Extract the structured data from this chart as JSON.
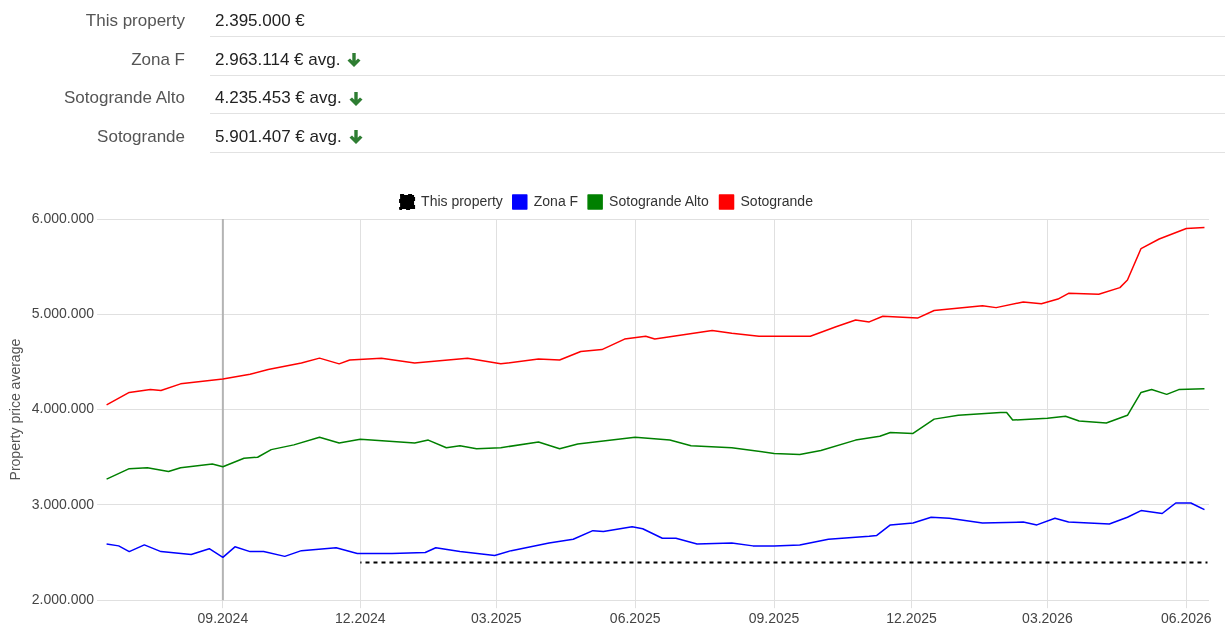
{
  "chart_data": {
    "type": "line",
    "annotations": [
      "This property",
      "2.395.000 €",
      "Zona F",
      "2.963.114 € avg.",
      "Sotogrande Alto",
      "4.235.453 € avg.",
      "Sotogrande",
      "5.901.407 € avg."
    ],
    "ylabel": "Property price average",
    "xlim": [
      "2024-06-15",
      "2026-06-16"
    ],
    "xticks": [
      {
        "value": "2024-09-01",
        "label": "09.2024"
      },
      {
        "value": "2024-12-01",
        "label": "12.2024"
      },
      {
        "value": "2025-03-01",
        "label": "03.2025"
      },
      {
        "value": "2025-06-01",
        "label": "06.2025"
      },
      {
        "value": "2025-09-01",
        "label": "09.2025"
      },
      {
        "value": "2025-12-01",
        "label": "12.2025"
      },
      {
        "value": "2026-03-01",
        "label": "03.2026"
      },
      {
        "value": "2026-06-01",
        "label": "06.2026"
      }
    ],
    "ylim": [
      2000000,
      6000000
    ],
    "yticks": [
      {
        "value": 2000000,
        "label": "2.000.000"
      },
      {
        "value": 3000000,
        "label": "3.000.000"
      },
      {
        "value": 4000000,
        "label": "4.000.000"
      },
      {
        "value": 5000000,
        "label": "5.000.000"
      },
      {
        "value": 6000000,
        "label": "6.000.000"
      }
    ],
    "grid": true,
    "legend": "top",
    "marker": "none",
    "ref_lines": [
      {
        "axis": "x",
        "value": "2024-09-01",
        "color": "#b4b4b4"
      }
    ],
    "series": [
      {
        "name": "This property",
        "color": "#000000",
        "line_style": "dashed",
        "x": [
          "2024-12-01",
          "2026-06-15"
        ],
        "values": [
          2395000,
          2395000
        ]
      },
      {
        "name": "Zona F",
        "color": "#0000ff",
        "x": [
          "2024-06-16",
          "2024-06-24",
          "2024-07-01",
          "2024-07-11",
          "2024-07-22",
          "2024-08-11",
          "2024-08-23",
          "2024-09-01",
          "2024-09-09",
          "2024-09-19",
          "2024-09-28",
          "2024-10-12",
          "2024-10-23",
          "2024-11-15",
          "2024-11-29",
          "2024-12-22",
          "2025-01-13",
          "2025-01-20",
          "2025-02-05",
          "2025-02-28",
          "2025-03-11",
          "2025-04-05",
          "2025-04-21",
          "2025-05-04",
          "2025-05-11",
          "2025-05-30",
          "2025-06-06",
          "2025-06-19",
          "2025-06-28",
          "2025-07-12",
          "2025-08-04",
          "2025-08-18",
          "2025-09-01",
          "2025-09-18",
          "2025-10-07",
          "2025-11-03",
          "2025-11-08",
          "2025-11-17",
          "2025-12-02",
          "2025-12-14",
          "2025-12-26",
          "2026-01-17",
          "2026-02-13",
          "2026-02-22",
          "2026-03-06",
          "2026-03-15",
          "2026-04-11",
          "2026-04-23",
          "2026-05-02",
          "2026-05-16",
          "2026-05-25",
          "2026-06-04",
          "2026-06-13"
        ],
        "values": [
          2590000,
          2570000,
          2510000,
          2580000,
          2510000,
          2480000,
          2540000,
          2450000,
          2560000,
          2510000,
          2510000,
          2460000,
          2520000,
          2550000,
          2490000,
          2490000,
          2500000,
          2550000,
          2510000,
          2470000,
          2520000,
          2600000,
          2640000,
          2730000,
          2720000,
          2770000,
          2750000,
          2650000,
          2650000,
          2590000,
          2600000,
          2570000,
          2570000,
          2580000,
          2640000,
          2670000,
          2680000,
          2790000,
          2810000,
          2870000,
          2860000,
          2810000,
          2820000,
          2790000,
          2860000,
          2820000,
          2800000,
          2870000,
          2940000,
          2910000,
          3020000,
          3020000,
          2950000
        ]
      },
      {
        "name": "Sotogrande Alto",
        "color": "#008000",
        "x": [
          "2024-06-16",
          "2024-07-01",
          "2024-07-13",
          "2024-07-27",
          "2024-08-04",
          "2024-08-25",
          "2024-09-01",
          "2024-09-15",
          "2024-09-24",
          "2024-10-03",
          "2024-10-18",
          "2024-11-04",
          "2024-11-17",
          "2024-12-01",
          "2025-01-06",
          "2025-01-15",
          "2025-01-27",
          "2025-02-05",
          "2025-02-16",
          "2025-03-04",
          "2025-03-29",
          "2025-04-12",
          "2025-04-24",
          "2025-06-01",
          "2025-06-24",
          "2025-07-08",
          "2025-08-04",
          "2025-09-01",
          "2025-09-18",
          "2025-10-02",
          "2025-10-25",
          "2025-11-10",
          "2025-11-17",
          "2025-12-02",
          "2025-12-16",
          "2026-01-01",
          "2026-01-29",
          "2026-02-02",
          "2026-02-06",
          "2026-03-01",
          "2026-03-13",
          "2026-03-22",
          "2026-04-09",
          "2026-04-23",
          "2026-05-02",
          "2026-05-09",
          "2026-05-19",
          "2026-05-27",
          "2026-06-13"
        ],
        "values": [
          3270000,
          3380000,
          3390000,
          3350000,
          3390000,
          3430000,
          3400000,
          3490000,
          3500000,
          3580000,
          3630000,
          3710000,
          3650000,
          3690000,
          3650000,
          3680000,
          3600000,
          3620000,
          3590000,
          3600000,
          3660000,
          3590000,
          3640000,
          3710000,
          3680000,
          3620000,
          3600000,
          3540000,
          3530000,
          3570000,
          3680000,
          3720000,
          3760000,
          3750000,
          3900000,
          3940000,
          3970000,
          3970000,
          3890000,
          3910000,
          3930000,
          3880000,
          3860000,
          3940000,
          4180000,
          4210000,
          4160000,
          4210000,
          4220000
        ]
      },
      {
        "name": "Sotogrande",
        "color": "#ff0000",
        "x": [
          "2024-06-16",
          "2024-07-01",
          "2024-07-15",
          "2024-07-22",
          "2024-08-04",
          "2024-09-01",
          "2024-09-19",
          "2024-10-01",
          "2024-10-23",
          "2024-11-04",
          "2024-11-17",
          "2024-11-24",
          "2024-12-15",
          "2025-01-06",
          "2025-02-10",
          "2025-03-04",
          "2025-03-29",
          "2025-04-12",
          "2025-04-26",
          "2025-05-10",
          "2025-05-25",
          "2025-06-08",
          "2025-06-14",
          "2025-07-22",
          "2025-08-04",
          "2025-08-22",
          "2025-09-25",
          "2025-10-12",
          "2025-10-25",
          "2025-11-03",
          "2025-11-12",
          "2025-12-05",
          "2025-12-16",
          "2026-01-17",
          "2026-01-26",
          "2026-02-13",
          "2026-02-25",
          "2026-03-08",
          "2026-03-15",
          "2026-04-04",
          "2026-04-18",
          "2026-04-23",
          "2026-05-02",
          "2026-05-14",
          "2026-06-01",
          "2026-06-13"
        ],
        "values": [
          4050000,
          4180000,
          4210000,
          4200000,
          4270000,
          4320000,
          4370000,
          4420000,
          4490000,
          4540000,
          4480000,
          4520000,
          4540000,
          4490000,
          4540000,
          4480000,
          4530000,
          4520000,
          4610000,
          4630000,
          4740000,
          4770000,
          4740000,
          4830000,
          4800000,
          4770000,
          4770000,
          4870000,
          4940000,
          4920000,
          4980000,
          4960000,
          5040000,
          5090000,
          5070000,
          5130000,
          5110000,
          5160000,
          5220000,
          5210000,
          5280000,
          5360000,
          5690000,
          5790000,
          5900000,
          5910000
        ]
      }
    ]
  }
}
